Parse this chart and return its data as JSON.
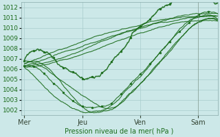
{
  "xlabel": "Pression niveau de la mer( hPa )",
  "ylim": [
    1001.5,
    1012.5
  ],
  "yticks": [
    1002,
    1003,
    1004,
    1005,
    1006,
    1007,
    1008,
    1009,
    1010,
    1011,
    1012
  ],
  "xtick_labels": [
    "Mer",
    "Jeu",
    "Ven",
    "Sam"
  ],
  "xtick_positions": [
    0,
    72,
    144,
    216
  ],
  "xlim": [
    -4,
    240
  ],
  "vline_sam": 216,
  "background_color": "#cce8e8",
  "grid_color": "#a8cccc",
  "line_color": "#1a6b1a",
  "text_color": "#1a6b1a",
  "tick_color": "#334433"
}
